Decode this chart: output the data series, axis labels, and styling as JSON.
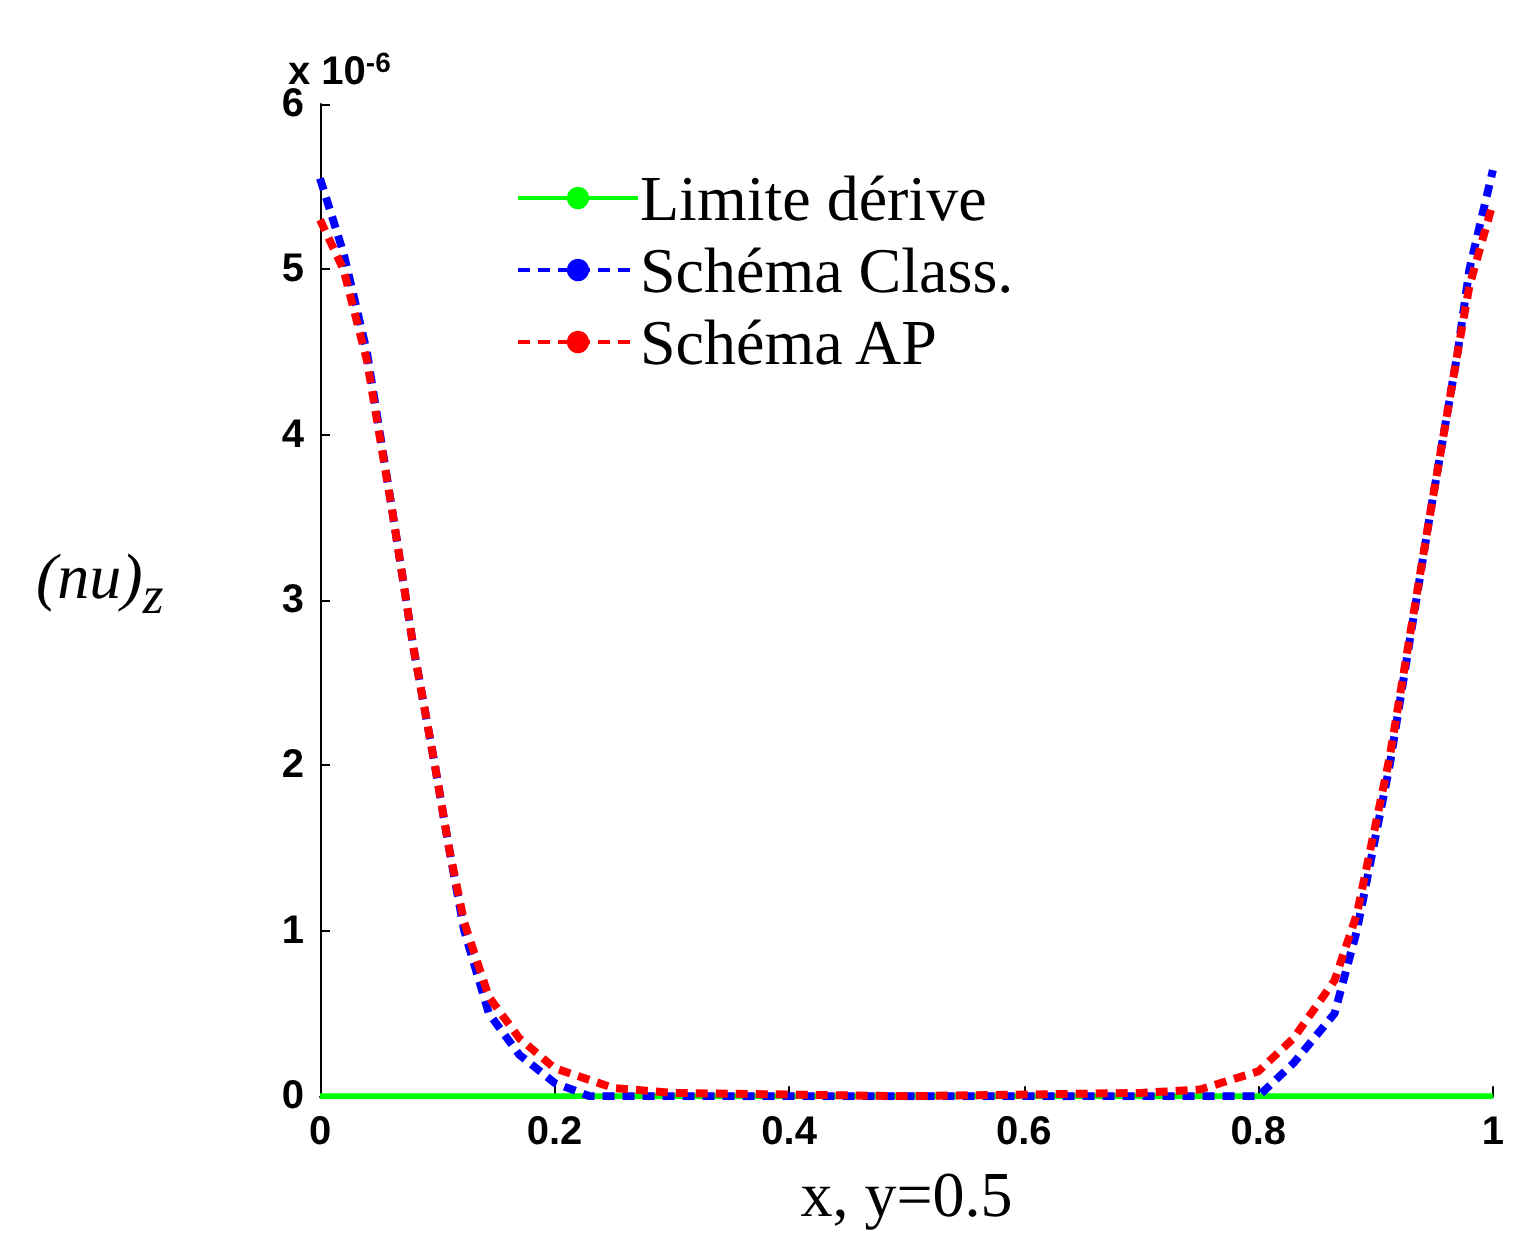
{
  "chart_data": {
    "type": "line",
    "xlabel": "x, y=0.5",
    "ylabel": "(nu)$_{z}$",
    "annotations": [
      "x 10$^{-6}$"
    ],
    "xlim": [
      0,
      1
    ],
    "ylim": [
      0,
      6
    ],
    "xticks": [
      0,
      0.2,
      0.4,
      0.6,
      0.8,
      1
    ],
    "yticks": [
      0,
      1,
      2,
      3,
      4,
      5,
      6
    ],
    "grid": false,
    "legend": "top",
    "marker": "none",
    "series": [
      {
        "name": "Limite dérive",
        "color": "#00ff00",
        "line_style": "solid",
        "x": [
          0,
          1
        ],
        "values": [
          0,
          0
        ]
      },
      {
        "name": "Schéma Class.",
        "color": "#0000ff",
        "line_style": "dashed",
        "x": [
          0,
          0.02,
          0.04,
          0.0625,
          0.08,
          0.098,
          0.11,
          0.123,
          0.144,
          0.17,
          0.2,
          0.23,
          0.3,
          0.5,
          0.7,
          0.8,
          0.83,
          0.865,
          0.884,
          0.912,
          0.946,
          0.97,
          0.98,
          1
        ],
        "values": [
          5.55,
          5.1,
          4.5,
          3.5,
          2.7,
          2.0,
          1.5,
          1.0,
          0.5,
          0.25,
          0.08,
          0,
          0,
          0,
          0,
          0,
          0.2,
          0.5,
          1.0,
          2.0,
          3.5,
          4.5,
          5.0,
          5.6
        ]
      },
      {
        "name": "Schéma AP",
        "color": "#ff0000",
        "line_style": "dashed",
        "x": [
          0,
          0.02,
          0.04,
          0.0625,
          0.08,
          0.098,
          0.11,
          0.123,
          0.144,
          0.17,
          0.2,
          0.25,
          0.3,
          0.5,
          0.7,
          0.75,
          0.8,
          0.83,
          0.865,
          0.884,
          0.912,
          0.946,
          0.97,
          0.98,
          1
        ],
        "values": [
          5.3,
          5.0,
          4.45,
          3.5,
          2.7,
          2.0,
          1.5,
          1.05,
          0.6,
          0.35,
          0.17,
          0.05,
          0.02,
          0,
          0.02,
          0.04,
          0.15,
          0.35,
          0.7,
          1.1,
          2.05,
          3.5,
          4.5,
          4.9,
          5.4
        ]
      }
    ]
  }
}
